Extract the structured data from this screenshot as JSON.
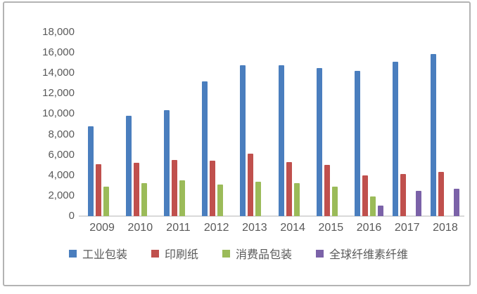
{
  "chart_data": {
    "type": "bar",
    "title": "",
    "xlabel": "",
    "ylabel": "",
    "categories": [
      "2009",
      "2010",
      "2011",
      "2012",
      "2013",
      "2014",
      "2015",
      "2016",
      "2017",
      "2018"
    ],
    "series": [
      {
        "key": "industrial-packaging",
        "name": "工业包装",
        "color": "#4A7EBE",
        "values": [
          8800,
          9800,
          10400,
          13200,
          14800,
          14800,
          14500,
          14200,
          15100,
          15900
        ]
      },
      {
        "key": "printing-paper",
        "name": "印刷纸",
        "color": "#C0504D",
        "values": [
          5100,
          5200,
          5500,
          5400,
          6100,
          5300,
          5000,
          4000,
          4100,
          4300
        ]
      },
      {
        "key": "consumer-goods-packaging",
        "name": "消费品包装",
        "color": "#9BBB59",
        "values": [
          2900,
          3200,
          3500,
          3100,
          3400,
          3200,
          2900,
          1900,
          0,
          0
        ]
      },
      {
        "key": "global-cellulose-fiber",
        "name": "全球纤维素纤维",
        "color": "#7B62A8",
        "values": [
          0,
          0,
          0,
          0,
          0,
          0,
          0,
          1000,
          2500,
          2700
        ]
      }
    ],
    "ylim": [
      0,
      18000
    ],
    "ytick_step": 2000,
    "ytick_labels_top_to_bottom": [
      "18,000",
      "16,000",
      "14,000",
      "12,000",
      "10,000",
      "8,000",
      "6,000",
      "4,000",
      "2,000",
      "0"
    ],
    "grid": false,
    "legend_position": "bottom",
    "axis_text_color": "#595959",
    "frame_border_color": "#b3b3b3",
    "axis_line_color": "#d9d9d9"
  }
}
